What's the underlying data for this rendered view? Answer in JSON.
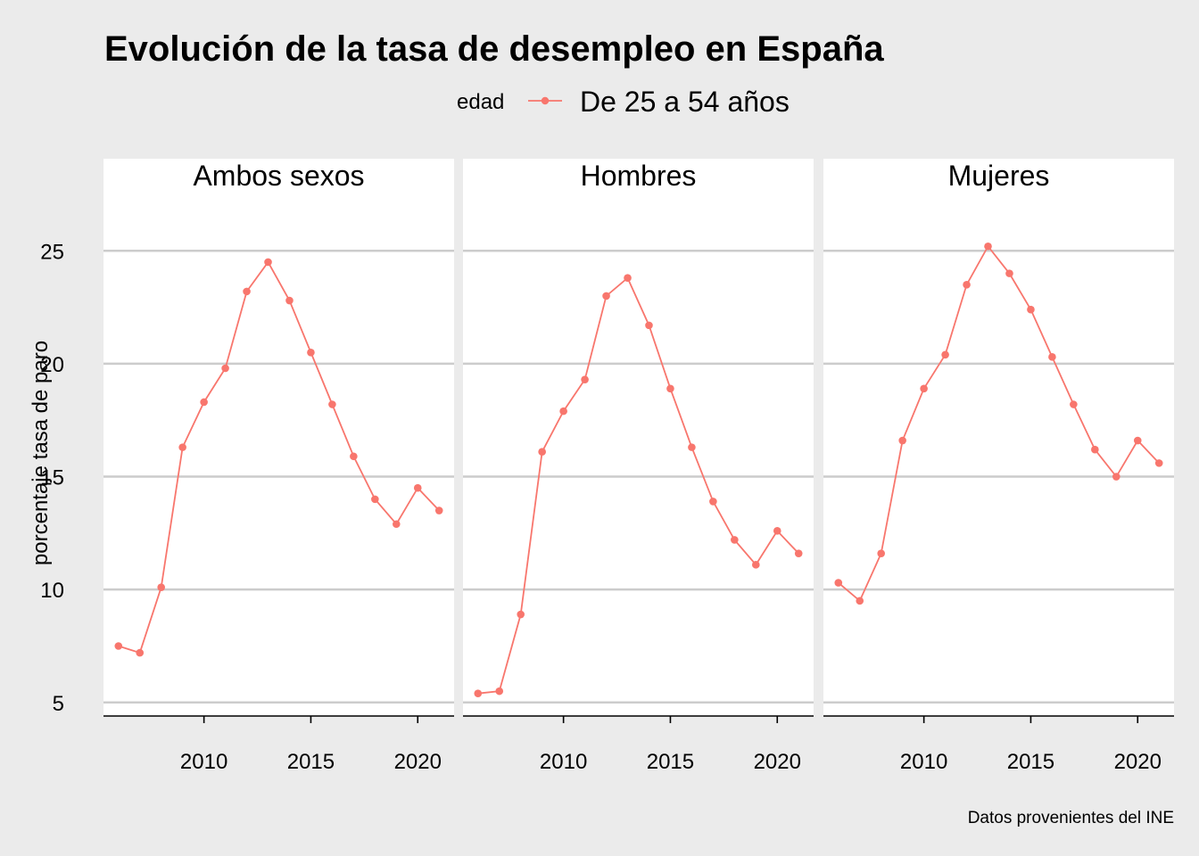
{
  "chart_data": {
    "type": "line",
    "title": "Evolución de la tasa de desempleo en España",
    "ylabel": "porcentaje tasa de paro",
    "xlabel": "",
    "caption": "Datos provenientes del INE",
    "legend": {
      "title": "edad",
      "position": "top",
      "entries": [
        {
          "label": "De 25 a 54 años",
          "color": "#f8766d"
        }
      ]
    },
    "facets": [
      "Ambos sexos",
      "Hombres",
      "Mujeres"
    ],
    "xlim": [
      2005.3,
      2021.7
    ],
    "ylim": [
      4.4,
      27.5
    ],
    "xticks": [
      2010,
      2015,
      2020
    ],
    "yticks": [
      5,
      10,
      15,
      20,
      25
    ],
    "grid": "horizontal-only",
    "colors": {
      "background": "#ebebeb",
      "panel": "#ffffff",
      "grid": "#cccccc",
      "line": "#f8766d",
      "axis": "#000000"
    },
    "x": [
      2006,
      2007,
      2008,
      2009,
      2010,
      2011,
      2012,
      2013,
      2014,
      2015,
      2016,
      2017,
      2018,
      2019,
      2020,
      2021
    ],
    "series": [
      {
        "facet": "Ambos sexos",
        "name": "De 25 a 54 años",
        "values": [
          7.5,
          7.2,
          10.1,
          16.3,
          18.3,
          19.8,
          23.2,
          24.5,
          22.8,
          20.5,
          18.2,
          15.9,
          14.0,
          12.9,
          14.5,
          13.5
        ]
      },
      {
        "facet": "Hombres",
        "name": "De 25 a 54 años",
        "values": [
          5.4,
          5.5,
          8.9,
          16.1,
          17.9,
          19.3,
          23.0,
          23.8,
          21.7,
          18.9,
          16.3,
          13.9,
          12.2,
          11.1,
          12.6,
          11.6
        ]
      },
      {
        "facet": "Mujeres",
        "name": "De 25 a 54 años",
        "values": [
          10.3,
          9.5,
          11.6,
          16.6,
          18.9,
          20.4,
          23.5,
          25.2,
          24.0,
          22.4,
          20.3,
          18.2,
          16.2,
          15.0,
          16.6,
          15.6
        ]
      }
    ]
  }
}
